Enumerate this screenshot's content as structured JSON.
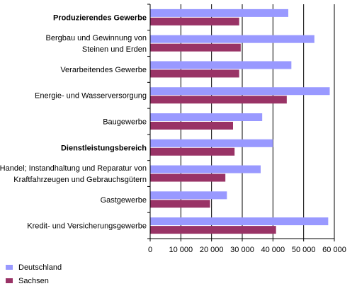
{
  "chart_data": {
    "type": "bar",
    "orientation": "horizontal",
    "categories": [
      {
        "lines": [
          "Produzierendes Gewerbe"
        ],
        "bold": true
      },
      {
        "lines": [
          "Bergbau und Gewinnung von",
          "Steinen und Erden"
        ],
        "bold": false
      },
      {
        "lines": [
          "Verarbeitendes Gewerbe"
        ],
        "bold": false
      },
      {
        "lines": [
          "Energie- und Wasserversorgung"
        ],
        "bold": false
      },
      {
        "lines": [
          "Baugewerbe"
        ],
        "bold": false
      },
      {
        "lines": [
          "Dienstleistungsbereich"
        ],
        "bold": true
      },
      {
        "lines": [
          "Handel; Instandhaltung und Reparatur von",
          "Kraftfahrzeugen und Gebrauchsgütern"
        ],
        "bold": false
      },
      {
        "lines": [
          "Gastgewerbe"
        ],
        "bold": false
      },
      {
        "lines": [
          "Kredit- und Versicherungsgewerbe"
        ],
        "bold": false
      }
    ],
    "series": [
      {
        "name": "Deutschland",
        "color": "#9999ff",
        "values": [
          45000,
          53500,
          46000,
          58500,
          36500,
          40000,
          36000,
          25000,
          58000
        ]
      },
      {
        "name": "Sachsen",
        "color": "#993366",
        "values": [
          29000,
          29500,
          29000,
          44500,
          27000,
          27500,
          24500,
          19500,
          41000
        ]
      }
    ],
    "xlim": [
      0,
      60000
    ],
    "xticks": [
      "0",
      "10 000",
      "20 000",
      "30 000",
      "40 000",
      "50 000",
      "60 000"
    ],
    "grid": true,
    "legend_position": "bottom-left",
    "title": "",
    "xlabel": "",
    "ylabel": ""
  }
}
